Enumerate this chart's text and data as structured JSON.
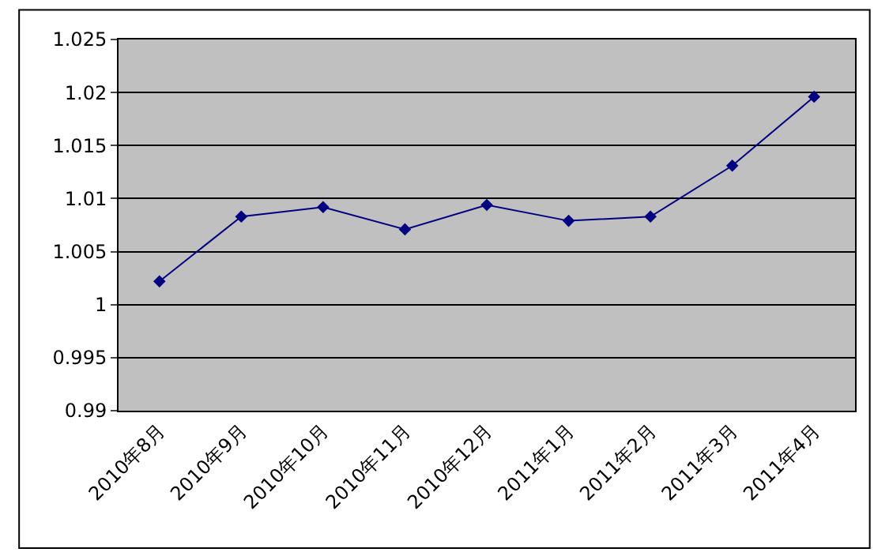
{
  "chart_data": {
    "type": "line",
    "categories": [
      "2010年8月",
      "2010年9月",
      "2010年10月",
      "2010年11月",
      "2010年12月",
      "2011年1月",
      "2011年2月",
      "2011年3月",
      "2011年4月"
    ],
    "series": [
      {
        "color": "#000080",
        "values": [
          1.0022,
          1.0083,
          1.0092,
          1.0071,
          1.0094,
          1.0079,
          1.0083,
          1.0131,
          1.0196
        ]
      }
    ],
    "ylim": [
      0.99,
      1.025
    ],
    "yticks": [
      0.99,
      0.995,
      1,
      1.005,
      1.01,
      1.015,
      1.02,
      1.025
    ],
    "grid": "y",
    "legend": false,
    "marker": "diamond",
    "line_style": "solid"
  }
}
